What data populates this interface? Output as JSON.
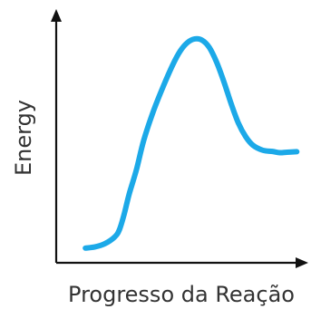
{
  "chart_data": {
    "type": "line",
    "title": "",
    "xlabel": "Progresso da Reação",
    "ylabel": "Energy",
    "grid": false,
    "legend": "none",
    "xlim": [
      0,
      100
    ],
    "ylim": [
      0,
      100
    ],
    "series": [
      {
        "color": "#1ca9e8",
        "x": [
          12,
          16,
          20,
          24,
          26,
          28,
          30,
          33,
          36,
          40,
          44,
          48,
          51,
          54,
          57,
          60,
          63,
          66,
          69,
          72,
          75,
          78,
          81,
          85,
          89,
          92,
          95,
          99
        ],
        "y": [
          6,
          6.5,
          7.8,
          10.5,
          13.5,
          20,
          28,
          38,
          50,
          62,
          72,
          81,
          86.5,
          90,
          91.5,
          91,
          88,
          82,
          74,
          65,
          57,
          51.5,
          48,
          46,
          45.5,
          45,
          45.2,
          45.4
        ]
      }
    ]
  }
}
